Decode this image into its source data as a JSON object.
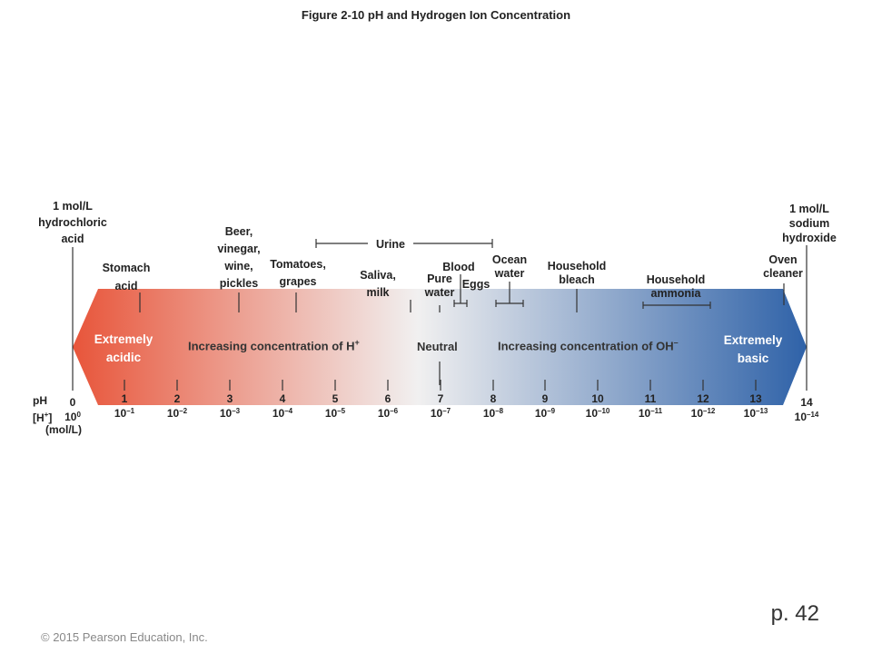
{
  "title": "Figure 2-10  pH and Hydrogen Ion Concentration",
  "page_number": "p. 42",
  "copyright": "© 2015 Pearson Education, Inc.",
  "arrow": {
    "left_label_lines": [
      "Extremely",
      "acidic"
    ],
    "right_label_lines": [
      "Extremely",
      "basic"
    ],
    "h_text": "Increasing concentration of H",
    "h_sup": "+",
    "neutral": "Neutral",
    "oh_text": "Increasing concentration of OH",
    "oh_sup": "–",
    "colors": {
      "acid": "#e8553a",
      "neutral": "#f1f0f0",
      "base": "#2f62a8"
    }
  },
  "axis": {
    "ph_label": "pH",
    "h_label": "[H",
    "h_label_sup": "+",
    "h_label_end": "]",
    "unit": "(mol/L)",
    "ticks": [
      {
        "ph": "0",
        "conc": "10",
        "exp": "0"
      },
      {
        "ph": "1",
        "conc": "10",
        "exp": "–1"
      },
      {
        "ph": "2",
        "conc": "10",
        "exp": "–2"
      },
      {
        "ph": "3",
        "conc": "10",
        "exp": "–3"
      },
      {
        "ph": "4",
        "conc": "10",
        "exp": "–4"
      },
      {
        "ph": "5",
        "conc": "10",
        "exp": "–5"
      },
      {
        "ph": "6",
        "conc": "10",
        "exp": "–6"
      },
      {
        "ph": "7",
        "conc": "10",
        "exp": "–7"
      },
      {
        "ph": "8",
        "conc": "10",
        "exp": "–8"
      },
      {
        "ph": "9",
        "conc": "10",
        "exp": "–9"
      },
      {
        "ph": "10",
        "conc": "10",
        "exp": "–10"
      },
      {
        "ph": "11",
        "conc": "10",
        "exp": "–11"
      },
      {
        "ph": "12",
        "conc": "10",
        "exp": "–12"
      },
      {
        "ph": "13",
        "conc": "10",
        "exp": "–13"
      },
      {
        "ph": "14",
        "conc": "10",
        "exp": "–14"
      }
    ]
  },
  "substances": {
    "hcl": [
      "1 mol/L",
      "hydrochloric",
      "acid"
    ],
    "stomach": [
      "Stomach",
      "acid"
    ],
    "beer": [
      "Beer,",
      "vinegar,",
      "wine,",
      "pickles"
    ],
    "tomatoes": [
      "Tomatoes,",
      "grapes"
    ],
    "urine": "Urine",
    "saliva": [
      "Saliva,",
      "milk"
    ],
    "blood": "Blood",
    "pure_water": [
      "Pure",
      "water"
    ],
    "eggs": "Eggs",
    "ocean": [
      "Ocean",
      "water"
    ],
    "bleach": [
      "Household",
      "bleach"
    ],
    "ammonia": [
      "Household",
      "ammonia"
    ],
    "oven": [
      "Oven",
      "cleaner"
    ],
    "naoh": [
      "1 mol/L",
      "sodium",
      "hydroxide"
    ]
  }
}
